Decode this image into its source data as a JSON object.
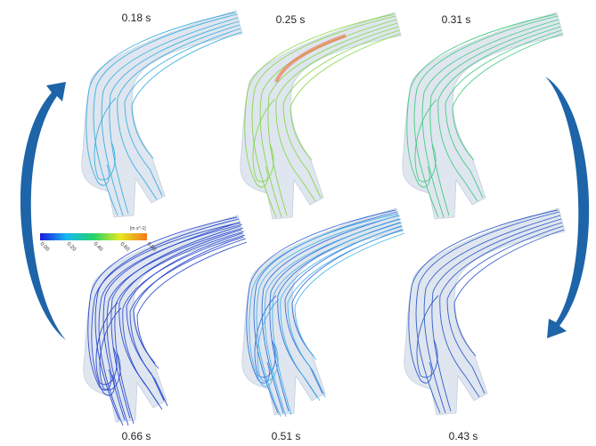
{
  "colorbar": {
    "unit": "[m s^-1]",
    "ticks": [
      "0.00",
      "0.20",
      "0.40",
      "0.60",
      "0.80"
    ]
  },
  "panels": [
    {
      "time": "0.18 s"
    },
    {
      "time": "0.25 s"
    },
    {
      "time": "0.31 s"
    },
    {
      "time": "0.66 s"
    },
    {
      "time": "0.51 s"
    },
    {
      "time": "0.43 s"
    }
  ]
}
